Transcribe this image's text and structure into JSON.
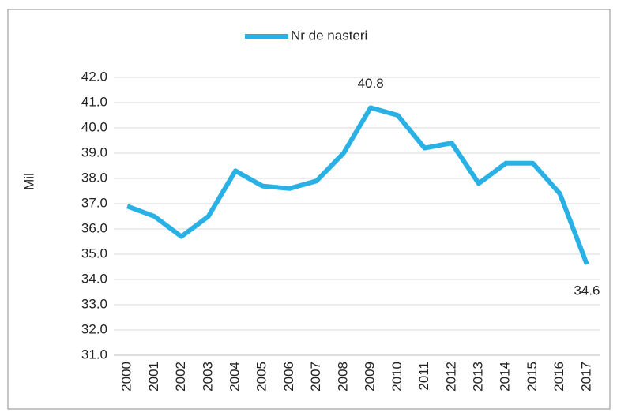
{
  "chart_data": {
    "type": "line",
    "y_label": "Mil",
    "categories": [
      "2000",
      "2001",
      "2002",
      "2003",
      "2004",
      "2005",
      "2006",
      "2007",
      "2008",
      "2009",
      "2010",
      "2011",
      "2012",
      "2013",
      "2014",
      "2015",
      "2016",
      "2017"
    ],
    "series": [
      {
        "name": "Nr de nasteri",
        "color": "#29b1e6",
        "values": [
          36.9,
          36.5,
          35.7,
          36.5,
          38.3,
          37.7,
          37.6,
          37.9,
          39.0,
          40.8,
          40.5,
          39.2,
          39.4,
          37.8,
          38.6,
          38.6,
          37.4,
          34.6
        ],
        "value_labels": [
          null,
          null,
          null,
          null,
          null,
          null,
          null,
          null,
          null,
          "40.8",
          null,
          null,
          null,
          null,
          null,
          null,
          null,
          "34.6"
        ]
      }
    ],
    "ylim": [
      31,
      42
    ],
    "yticks": [
      {
        "value": 31,
        "label": "31.0"
      },
      {
        "value": 32,
        "label": "32.0"
      },
      {
        "value": 33,
        "label": "33.0"
      },
      {
        "value": 34,
        "label": "34.0"
      },
      {
        "value": 35,
        "label": "35.0"
      },
      {
        "value": 36,
        "label": "36.0"
      },
      {
        "value": 37,
        "label": "37.0"
      },
      {
        "value": 38,
        "label": "38.0"
      },
      {
        "value": 39,
        "label": "39.0"
      },
      {
        "value": 40,
        "label": "40.0"
      },
      {
        "value": 41,
        "label": "41.0"
      },
      {
        "value": 42,
        "label": "42.0"
      }
    ],
    "grid": true,
    "legend": "top"
  }
}
